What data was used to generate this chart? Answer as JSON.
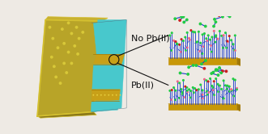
{
  "bg_color": "#eeeae4",
  "membrane_face_color": "#b8a428",
  "membrane_edge_color": "#d4c030",
  "membrane_side_color": "#8a7818",
  "membrane_top_color": "#c8b030",
  "pore_color": "#48c8cc",
  "pore_ring_color": "#c8a018",
  "dot_color": "#d8c838",
  "gold_top_color": "#e8c020",
  "gold_front_color": "#c89808",
  "gold_side_color": "#a07808",
  "dna_color": "#1a3acc",
  "ball_green": "#22cc44",
  "ball_red": "#cc2020",
  "ball_pink": "#ee6688",
  "label_no_pb": "No Pb(II)",
  "label_pb": "Pb(II)",
  "label_fontsize": 8,
  "label_color": "#111111",
  "line_color": "#111111",
  "circle_color": "#111111"
}
